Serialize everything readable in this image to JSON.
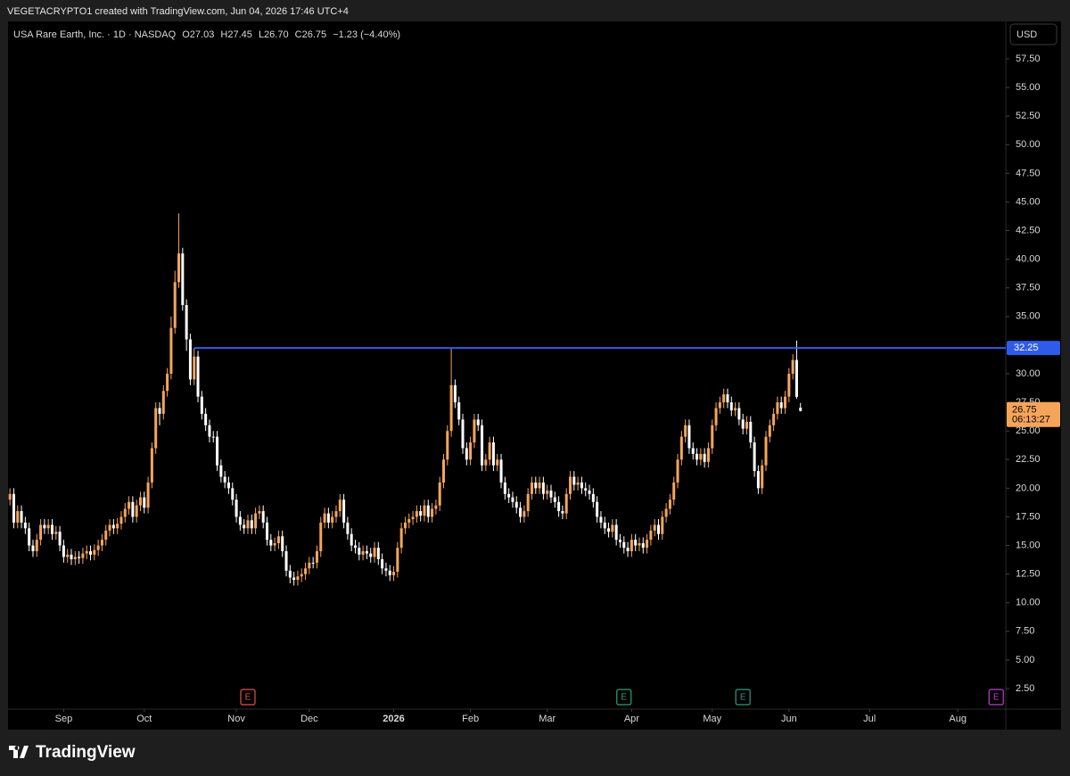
{
  "page": {
    "attribution": "VEGETACRYPTO1 created with TradingView.com, Jun 04, 2026 17:46 UTC+4",
    "brand": "TradingView"
  },
  "chart_data": {
    "type": "candlestick",
    "title": "USA Rare Earth, Inc. · 1D · NASDAQ",
    "legend": [
      "O27.03",
      "H27.45",
      "L26.70",
      "C26.75",
      "−1.23 (−4.40%)"
    ],
    "currency": "USD",
    "up_color": "#f5a55a",
    "down_color": "#ffffff",
    "open": [
      19,
      19.5,
      17,
      18,
      17,
      16.5,
      15,
      14.5,
      15.5,
      16.8,
      16.5,
      16.8,
      16,
      16.2,
      15,
      14,
      14.2,
      13.8,
      14,
      13.9,
      14.3,
      14.5,
      14.2,
      14.6,
      15,
      15.5,
      16.3,
      16.8,
      16.5,
      16.9,
      17.5,
      18.2,
      18.8,
      17.5,
      18.5,
      19.2,
      18.3,
      20.5,
      23.5,
      27,
      26.5,
      28.5,
      30,
      34,
      38,
      40.5,
      36,
      33,
      29.5,
      31.5,
      28,
      26.5,
      25.5,
      24.5,
      24.5,
      22,
      21,
      20.5,
      20,
      19,
      17.5,
      16.8,
      16.5,
      17.2,
      16.5,
      17.8,
      18,
      17,
      15.5,
      15,
      15.2,
      15.8,
      14.5,
      12.8,
      12.2,
      12,
      12.3,
      12.5,
      13,
      13.5,
      13.5,
      14.5,
      17,
      17.8,
      17,
      17.5,
      18,
      19,
      17,
      16,
      15,
      14.8,
      14.2,
      14.5,
      14.3,
      14,
      14.8,
      13.8,
      13,
      12.8,
      12.4,
      12.7,
      14.8,
      16.5,
      17,
      17.3,
      17.5,
      18,
      17.6,
      18.5,
      17.5,
      18.2,
      18.5,
      20.5,
      22.5,
      25,
      29,
      27.5,
      26,
      23.5,
      22.5,
      24,
      26,
      25.5,
      22,
      22.5,
      24,
      22,
      22.5,
      20.5,
      19.5,
      19.2,
      18.8,
      18.3,
      17.5,
      18,
      19.5,
      20.5,
      20,
      20.5,
      19.5,
      19.8,
      19.2,
      18.8,
      18,
      17.8,
      19.5,
      21,
      20.3,
      20.5,
      20,
      19.8,
      19.5,
      18.8,
      17.5,
      17,
      16.5,
      16.2,
      16.8,
      15.5,
      15.3,
      14.8,
      14.5,
      15.5,
      15,
      15.2,
      14.8,
      15.5,
      16.3,
      16.8,
      16,
      17.5,
      18.2,
      19,
      20.5,
      22.5,
      24.5,
      25.5,
      23.5,
      23,
      22.5,
      23,
      22.3,
      23.5,
      25.5,
      27,
      27.5,
      28.2,
      27.5,
      26.8,
      27,
      26,
      25.2,
      25.8,
      24,
      21.5,
      20,
      22,
      24.5,
      25.5,
      26.5,
      27.5,
      27,
      28,
      30,
      31.2,
      27.03
    ],
    "high": [
      20,
      20,
      18.5,
      18.5,
      17.5,
      17,
      15.5,
      16,
      17.3,
      17.3,
      17.3,
      17.3,
      16.7,
      16.7,
      15.5,
      14.7,
      14.7,
      14.5,
      14.5,
      14.8,
      15,
      15,
      15.1,
      15.5,
      16,
      16.8,
      17.3,
      17.3,
      17.4,
      18,
      18.7,
      19.3,
      19.3,
      19,
      19.7,
      19.7,
      21,
      24,
      27.5,
      27.5,
      29,
      30.5,
      35,
      39,
      44,
      41,
      36.5,
      33.5,
      32.25,
      32,
      28.5,
      27,
      26,
      25,
      25,
      22.5,
      21.5,
      21,
      20.5,
      19.5,
      18,
      17.3,
      17.7,
      17.7,
      18.3,
      18.5,
      18.5,
      17.5,
      16,
      15.7,
      16.3,
      16.3,
      15,
      13.3,
      12.7,
      12.8,
      13,
      13.5,
      14,
      14,
      15,
      17.5,
      18.3,
      18.3,
      18,
      18.5,
      19.5,
      19.5,
      17.5,
      16.5,
      15.5,
      15.3,
      15,
      15,
      14.8,
      15.3,
      15.3,
      14.3,
      13.5,
      13.3,
      13.2,
      15.3,
      17,
      17.5,
      17.8,
      18,
      18.5,
      18.5,
      19,
      19,
      18.7,
      19,
      21,
      23,
      25.5,
      32.3,
      29.5,
      28,
      26.5,
      24,
      24.5,
      26.5,
      26.5,
      26,
      23,
      24.5,
      24.5,
      23,
      23,
      21,
      20,
      19.7,
      19.3,
      18.8,
      18.5,
      20,
      21,
      21,
      21,
      21,
      20.3,
      20.3,
      19.7,
      19.3,
      18.5,
      20,
      21.5,
      21.5,
      21,
      21,
      20.5,
      20.3,
      20,
      19.3,
      18,
      17.5,
      17,
      17.3,
      17.3,
      16,
      15.8,
      15.3,
      16,
      16,
      15.7,
      15.7,
      16,
      16.8,
      17.3,
      17.3,
      18,
      18.7,
      19.5,
      21,
      23,
      25,
      26,
      26,
      24,
      23.5,
      23.5,
      23.5,
      24,
      26,
      27.5,
      28,
      28.7,
      28.7,
      28,
      27.5,
      27.5,
      26.5,
      26.3,
      26.3,
      24.5,
      22,
      22.5,
      25,
      26,
      27,
      28,
      28,
      28.5,
      30.5,
      31.7,
      32.9,
      27.45
    ],
    "low": [
      18.5,
      16.5,
      16.5,
      16.5,
      16,
      14.5,
      14,
      14,
      15,
      16,
      16,
      15.5,
      15.5,
      14.5,
      13.5,
      13.5,
      13.3,
      13.3,
      13.4,
      13.4,
      13.8,
      13.7,
      13.7,
      14.1,
      14.5,
      15,
      15.8,
      16,
      16,
      16.4,
      17,
      17.7,
      17,
      17,
      18,
      17.8,
      17.8,
      20,
      23,
      25.5,
      26,
      28,
      29.5,
      33.5,
      37.5,
      35.5,
      32,
      29,
      29,
      27.5,
      26,
      25,
      24,
      24,
      21.5,
      20.5,
      20,
      19.5,
      18.5,
      17,
      16.3,
      16,
      16,
      16,
      16,
      17.3,
      16.5,
      15,
      14.5,
      14.5,
      14.7,
      14,
      12.3,
      11.7,
      11.5,
      11.5,
      11.8,
      12,
      12.5,
      13,
      13,
      14,
      16.5,
      16.5,
      16.5,
      17,
      17.5,
      16.5,
      15.5,
      14.5,
      14.3,
      13.7,
      13.7,
      13.8,
      13.5,
      13.5,
      13.3,
      12.5,
      12.3,
      11.9,
      11.9,
      12.2,
      14.3,
      16,
      16.5,
      16.8,
      17,
      17.1,
      17.1,
      17,
      17,
      17.7,
      18,
      20,
      22,
      24.5,
      27,
      25.5,
      23,
      22,
      22,
      23.5,
      25,
      21.5,
      21.5,
      22,
      21.5,
      21.5,
      20,
      19,
      18.7,
      18.3,
      17.8,
      17,
      17,
      17.5,
      19,
      19.5,
      19.5,
      19,
      19,
      18.7,
      18.3,
      17.5,
      17.3,
      17.3,
      19,
      19.8,
      19.8,
      19.5,
      19.3,
      19,
      18.3,
      17,
      16.5,
      16,
      15.7,
      15.7,
      15,
      14.8,
      14.3,
      14,
      14,
      14.5,
      14.5,
      14.3,
      14.3,
      15,
      15.8,
      15.5,
      15.5,
      17,
      17.7,
      18.5,
      20,
      22,
      24,
      23,
      22.5,
      22,
      22,
      21.8,
      21.8,
      23,
      25,
      26.5,
      27,
      27,
      26.3,
      26.3,
      25.5,
      24.7,
      24.7,
      23.5,
      21,
      19.5,
      19.5,
      21.5,
      24,
      25,
      26,
      26.5,
      26.5,
      27.5,
      29.5,
      27.8,
      26.7
    ],
    "close": [
      19.5,
      17,
      18,
      17,
      16.5,
      15,
      14.5,
      15.5,
      16.8,
      16.5,
      16.8,
      16,
      16.2,
      15,
      14,
      14.2,
      13.8,
      14,
      13.9,
      14.3,
      14.5,
      14.2,
      14.6,
      15,
      15.5,
      16.3,
      16.8,
      16.5,
      16.9,
      17.5,
      18.2,
      18.8,
      17.5,
      18.5,
      19.2,
      18.3,
      20.5,
      23.5,
      27,
      26.5,
      28.5,
      30,
      34,
      38,
      40.5,
      36,
      33,
      29.5,
      31.5,
      28,
      26.5,
      25.5,
      24.5,
      24.5,
      22,
      21,
      20.5,
      20,
      19,
      17.5,
      16.8,
      16.5,
      17.2,
      16.5,
      17.8,
      18,
      17,
      15.5,
      15,
      15.2,
      15.8,
      14.5,
      12.8,
      12.2,
      12,
      12.3,
      12.5,
      13,
      13.5,
      13.5,
      14.5,
      17,
      17.8,
      17,
      17.5,
      18,
      19,
      17,
      16,
      15,
      14.8,
      14.2,
      14.5,
      14.3,
      14,
      14.8,
      13.8,
      13,
      12.8,
      12.4,
      12.7,
      14.8,
      16.5,
      17,
      17.3,
      17.5,
      18,
      17.6,
      18.5,
      17.5,
      18.2,
      18.5,
      20.5,
      22.5,
      25,
      29,
      27.5,
      26,
      23.5,
      22.5,
      24,
      26,
      25.5,
      22,
      22.5,
      24,
      22,
      22.5,
      20.5,
      19.5,
      19.2,
      18.8,
      18.3,
      17.5,
      18,
      19.5,
      20.5,
      20,
      20.5,
      19.5,
      19.8,
      19.2,
      18.8,
      18,
      17.8,
      19.5,
      21,
      20.3,
      20.5,
      20,
      19.8,
      19.5,
      18.8,
      17.5,
      17,
      16.5,
      16.2,
      16.8,
      15.5,
      15.3,
      14.8,
      14.5,
      15.5,
      15,
      15.2,
      14.8,
      15.5,
      16.3,
      16.8,
      16,
      17.5,
      18.2,
      19,
      20.5,
      22.5,
      24.5,
      25.5,
      23.5,
      23,
      22.5,
      23,
      22.3,
      23.5,
      25.5,
      27,
      27.5,
      28.2,
      27.5,
      26.8,
      27,
      26,
      25.2,
      25.8,
      24,
      21.5,
      20,
      22,
      24.5,
      25.5,
      26.5,
      27.5,
      27,
      28,
      30,
      31.2,
      27.98,
      26.75
    ],
    "xlim": [
      -0.5,
      259.5
    ],
    "xticks": [
      {
        "value": 14,
        "label": "Sep"
      },
      {
        "value": 35,
        "label": "Oct"
      },
      {
        "value": 59,
        "label": "Nov"
      },
      {
        "value": 78,
        "label": "Dec"
      },
      {
        "value": 100,
        "label": "2026"
      },
      {
        "value": 120,
        "label": "Feb"
      },
      {
        "value": 140,
        "label": "Mar"
      },
      {
        "value": 162,
        "label": "Apr"
      },
      {
        "value": 183,
        "label": "May"
      },
      {
        "value": 203,
        "label": "Jun"
      },
      {
        "value": 224,
        "label": "Jul"
      },
      {
        "value": 247,
        "label": "Aug"
      }
    ],
    "ylim": [
      0.71,
      60.77
    ],
    "yticks": [
      {
        "value": 2.5,
        "label": "2.50"
      },
      {
        "value": 5,
        "label": "5.00"
      },
      {
        "value": 7.5,
        "label": "7.50"
      },
      {
        "value": 10,
        "label": "10.00"
      },
      {
        "value": 12.5,
        "label": "12.50"
      },
      {
        "value": 15,
        "label": "15.00"
      },
      {
        "value": 17.5,
        "label": "17.50"
      },
      {
        "value": 20,
        "label": "20.00"
      },
      {
        "value": 22.5,
        "label": "22.50"
      },
      {
        "value": 25,
        "label": "25.00"
      },
      {
        "value": 27.5,
        "label": "27.50"
      },
      {
        "value": 30,
        "label": "30.00"
      },
      {
        "value": 32.5,
        "label": "32.50"
      },
      {
        "value": 35,
        "label": "35.00"
      },
      {
        "value": 37.5,
        "label": "37.50"
      },
      {
        "value": 40,
        "label": "40.00"
      },
      {
        "value": 42.5,
        "label": "42.50"
      },
      {
        "value": 45,
        "label": "45.00"
      },
      {
        "value": 47.5,
        "label": "47.50"
      },
      {
        "value": 50,
        "label": "50.00"
      },
      {
        "value": 52.5,
        "label": "52.50"
      },
      {
        "value": 55,
        "label": "55.00"
      },
      {
        "value": 57.5,
        "label": "57.50"
      }
    ],
    "hline": {
      "value": 32.25,
      "from": 48,
      "color": "#2f5bea"
    },
    "last_price_countdown": "06:13:27",
    "events": [
      {
        "label": "E",
        "x": 62,
        "color": "#e05252"
      },
      {
        "label": "E",
        "x": 160,
        "color": "#2e9e7e"
      },
      {
        "label": "E",
        "x": 191,
        "color": "#2e9e7e"
      },
      {
        "label": "E",
        "x": 257,
        "color": "#c13fd6"
      }
    ]
  }
}
